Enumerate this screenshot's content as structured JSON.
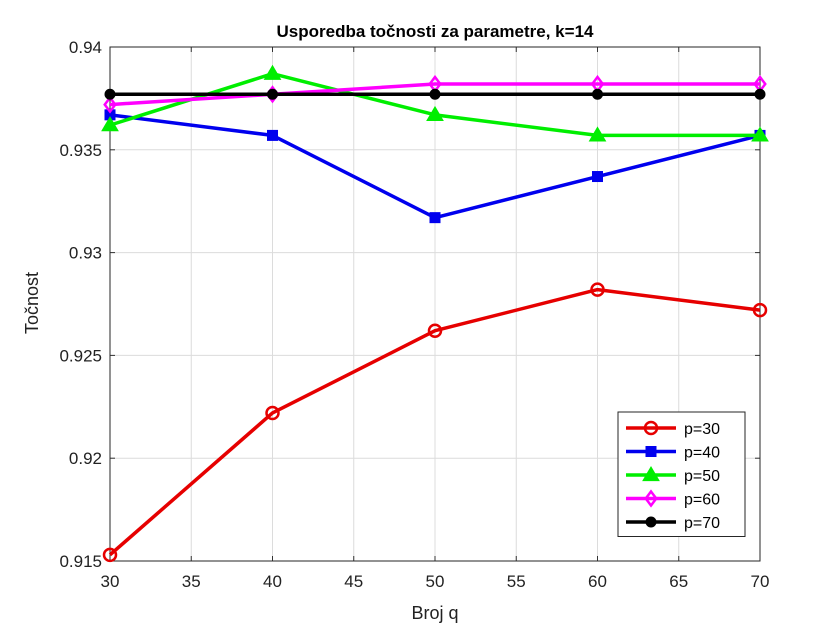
{
  "chart_data": {
    "type": "line",
    "title": "Usporedba točnosti za parametre, k=14",
    "xlabel": "Broj q",
    "ylabel": "Točnost",
    "x": [
      30,
      40,
      50,
      60,
      70
    ],
    "xlim": [
      30,
      70
    ],
    "ylim": [
      0.915,
      0.94
    ],
    "xticks": [
      "30",
      "35",
      "40",
      "45",
      "50",
      "55",
      "60",
      "65",
      "70"
    ],
    "yticks": [
      "0.915",
      "0.92",
      "0.925",
      "0.93",
      "0.935",
      "0.94"
    ],
    "grid": true,
    "legend_position": "bottom-right",
    "series": [
      {
        "name": "p=30",
        "color": "#e60000",
        "marker": "circle-open",
        "values": [
          0.9153,
          0.9222,
          0.9262,
          0.9282,
          0.9272
        ]
      },
      {
        "name": "p=40",
        "color": "#0000ee",
        "marker": "square",
        "values": [
          0.9367,
          0.9357,
          0.9317,
          0.9337,
          0.9357
        ]
      },
      {
        "name": "p=50",
        "color": "#00ee00",
        "marker": "triangle",
        "values": [
          0.9362,
          0.9387,
          0.9367,
          0.9357,
          0.9357
        ]
      },
      {
        "name": "p=60",
        "color": "#ff00ff",
        "marker": "diamond",
        "values": [
          0.9372,
          0.9377,
          0.9382,
          0.9382,
          0.9382
        ]
      },
      {
        "name": "p=70",
        "color": "#000000",
        "marker": "dot",
        "values": [
          0.9377,
          0.9377,
          0.9377,
          0.9377,
          0.9377
        ]
      }
    ]
  }
}
